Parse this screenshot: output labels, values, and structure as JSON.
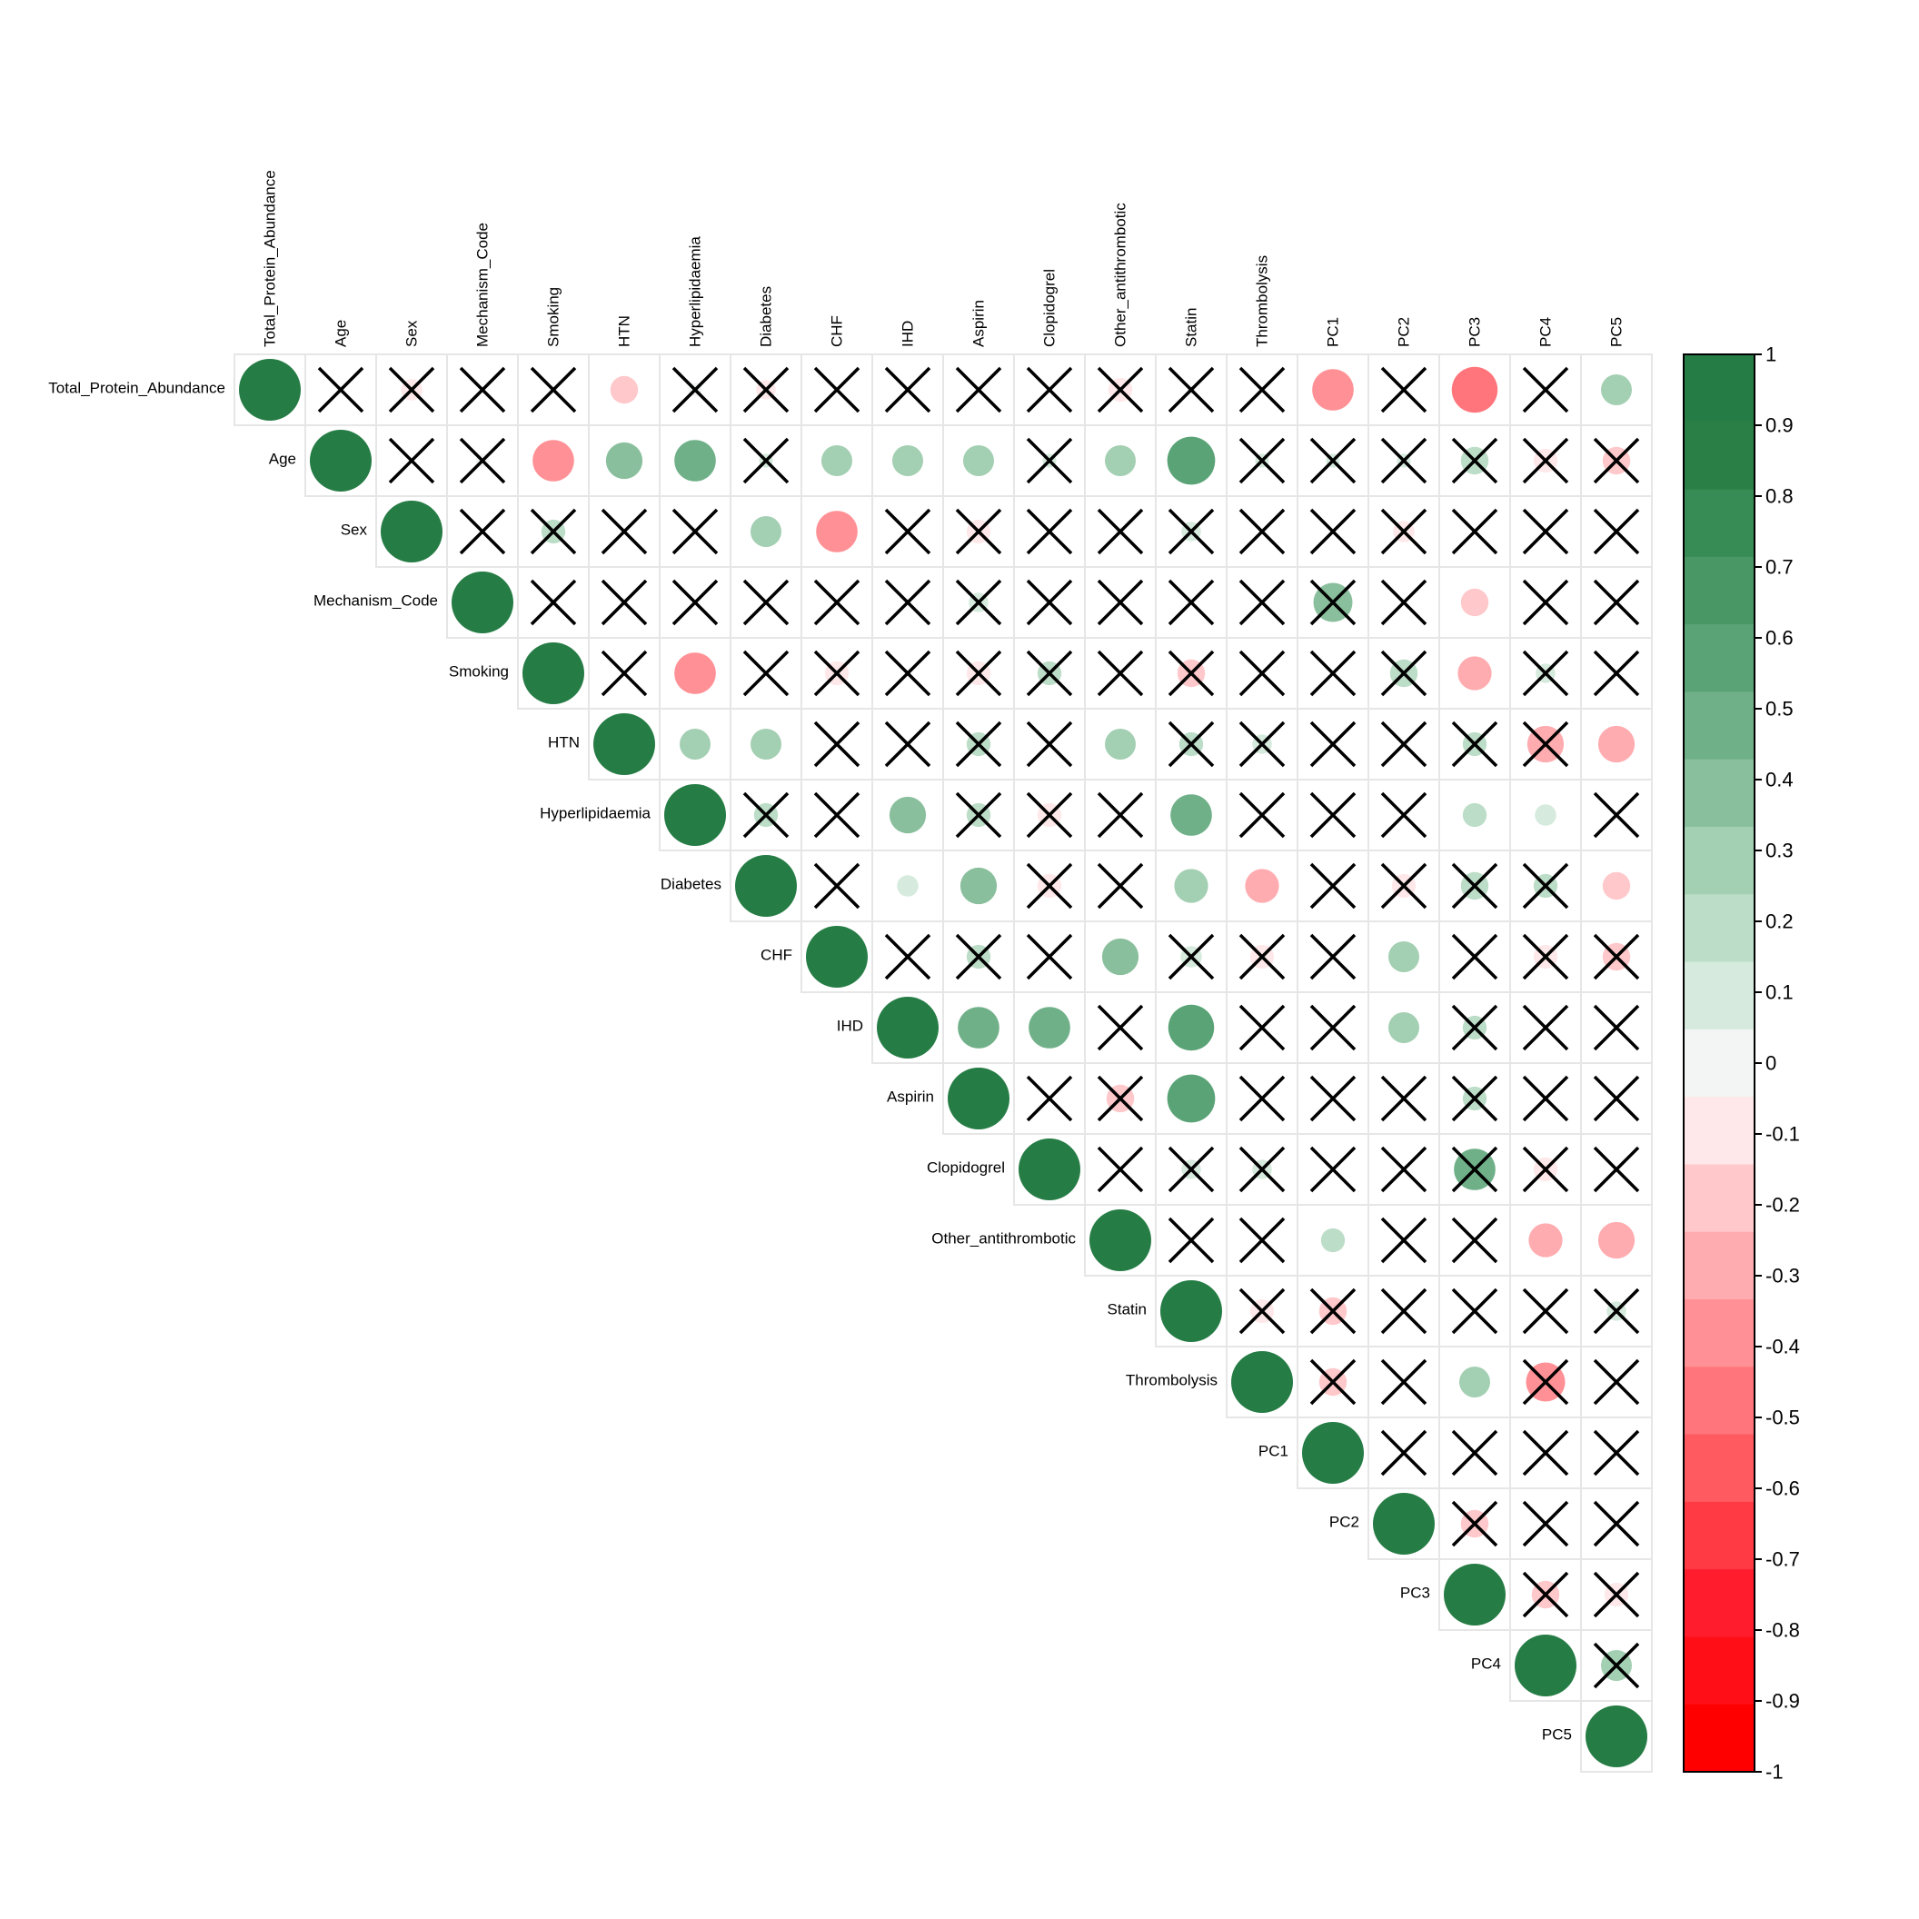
{
  "chart_data": {
    "type": "heatmap",
    "title": "",
    "variables": [
      "Total_Protein_Abundance",
      "Age",
      "Sex",
      "Mechanism_Code",
      "Smoking",
      "HTN",
      "Hyperlipidaemia",
      "Diabetes",
      "CHF",
      "IHD",
      "Aspirin",
      "Clopidogrel",
      "Other_antithrombotic",
      "Statin",
      "Thrombolysis",
      "PC1",
      "PC2",
      "PC3",
      "PC4",
      "PC5"
    ],
    "matrix_shape": "upper",
    "marker": "circle",
    "insignificant_marker": "cross",
    "correlations": [
      [
        1.0,
        0.02,
        -0.12,
        0.0,
        0.02,
        -0.2,
        -0.05,
        -0.1,
        0.0,
        0.0,
        0.02,
        0.0,
        -0.15,
        0.02,
        0.0,
        -0.45,
        0.0,
        -0.55,
        0.0,
        0.25
      ],
      [
        null,
        1.0,
        0.0,
        -0.05,
        -0.45,
        0.35,
        0.45,
        0.05,
        0.25,
        0.25,
        0.25,
        0.05,
        0.25,
        0.6,
        0.05,
        0.05,
        0.05,
        0.2,
        -0.15,
        -0.2
      ],
      [
        null,
        null,
        1.0,
        0.0,
        0.15,
        0.0,
        0.02,
        0.25,
        -0.45,
        0.0,
        -0.15,
        0.0,
        0.02,
        0.1,
        0.0,
        0.0,
        -0.12,
        0.0,
        0.0,
        0.0
      ],
      [
        null,
        null,
        null,
        1.0,
        0.02,
        0.02,
        0.0,
        0.0,
        0.0,
        0.0,
        0.1,
        0.0,
        0.0,
        0.0,
        0.0,
        0.4,
        0.0,
        -0.2,
        0.0,
        0.0
      ],
      [
        null,
        null,
        null,
        null,
        1.0,
        0.0,
        -0.45,
        0.0,
        -0.15,
        0.0,
        -0.15,
        0.15,
        0.0,
        -0.2,
        0.0,
        0.0,
        0.2,
        -0.3,
        0.1,
        0.0
      ],
      [
        null,
        null,
        null,
        null,
        null,
        1.0,
        0.25,
        0.25,
        0.0,
        0.0,
        0.15,
        0.0,
        0.25,
        0.15,
        0.1,
        0.0,
        0.02,
        0.15,
        -0.35,
        -0.35
      ],
      [
        null,
        null,
        null,
        null,
        null,
        null,
        1.0,
        0.15,
        0.0,
        0.35,
        0.15,
        -0.15,
        0.0,
        0.45,
        0.0,
        0.0,
        0.0,
        0.15,
        0.12,
        0.0
      ],
      [
        null,
        null,
        null,
        null,
        null,
        null,
        null,
        1.0,
        0.0,
        0.12,
        0.35,
        -0.15,
        0.0,
        0.3,
        -0.3,
        0.0,
        -0.15,
        0.2,
        0.15,
        -0.2
      ],
      [
        null,
        null,
        null,
        null,
        null,
        null,
        null,
        null,
        1.0,
        0.0,
        0.15,
        0.0,
        0.35,
        0.12,
        -0.15,
        0.0,
        0.25,
        0.02,
        -0.15,
        -0.2
      ],
      [
        null,
        null,
        null,
        null,
        null,
        null,
        null,
        null,
        null,
        1.0,
        0.45,
        0.45,
        0.0,
        0.55,
        0.0,
        0.0,
        0.25,
        0.15,
        0.0,
        0.0
      ],
      [
        null,
        null,
        null,
        null,
        null,
        null,
        null,
        null,
        null,
        null,
        1.0,
        0.0,
        -0.2,
        0.6,
        0.0,
        0.0,
        0.0,
        0.15,
        0.0,
        0.0
      ],
      [
        null,
        null,
        null,
        null,
        null,
        null,
        null,
        null,
        null,
        null,
        null,
        1.0,
        0.0,
        0.1,
        0.1,
        0.0,
        0.0,
        0.45,
        -0.15,
        0.0
      ],
      [
        null,
        null,
        null,
        null,
        null,
        null,
        null,
        null,
        null,
        null,
        null,
        null,
        1.0,
        0.0,
        0.0,
        0.15,
        0.0,
        0.0,
        -0.3,
        -0.35
      ],
      [
        null,
        null,
        null,
        null,
        null,
        null,
        null,
        null,
        null,
        null,
        null,
        null,
        null,
        1.0,
        -0.15,
        -0.2,
        0.0,
        0.0,
        0.0,
        0.1
      ],
      [
        null,
        null,
        null,
        null,
        null,
        null,
        null,
        null,
        null,
        null,
        null,
        null,
        null,
        null,
        1.0,
        -0.2,
        0.0,
        0.25,
        -0.4,
        0.0
      ],
      [
        null,
        null,
        null,
        null,
        null,
        null,
        null,
        null,
        null,
        null,
        null,
        null,
        null,
        null,
        null,
        1.0,
        0.0,
        0.0,
        0.0,
        0.0
      ],
      [
        null,
        null,
        null,
        null,
        null,
        null,
        null,
        null,
        null,
        null,
        null,
        null,
        null,
        null,
        null,
        null,
        1.0,
        -0.2,
        0.0,
        0.0
      ],
      [
        null,
        null,
        null,
        null,
        null,
        null,
        null,
        null,
        null,
        null,
        null,
        null,
        null,
        null,
        null,
        null,
        null,
        1.0,
        -0.2,
        -0.15
      ],
      [
        null,
        null,
        null,
        null,
        null,
        null,
        null,
        null,
        null,
        null,
        null,
        null,
        null,
        null,
        null,
        null,
        null,
        null,
        1.0,
        0.25
      ],
      [
        null,
        null,
        null,
        null,
        null,
        null,
        null,
        null,
        null,
        null,
        null,
        null,
        null,
        null,
        null,
        null,
        null,
        null,
        null,
        1.0
      ]
    ],
    "significant": [
      [
        true,
        false,
        false,
        false,
        false,
        true,
        false,
        false,
        false,
        false,
        false,
        false,
        false,
        false,
        false,
        true,
        false,
        true,
        false,
        true
      ],
      [
        null,
        true,
        false,
        false,
        true,
        true,
        true,
        false,
        true,
        true,
        true,
        false,
        true,
        true,
        false,
        false,
        false,
        false,
        false,
        false
      ],
      [
        null,
        null,
        true,
        false,
        false,
        false,
        false,
        true,
        true,
        false,
        false,
        false,
        false,
        false,
        false,
        false,
        false,
        false,
        false,
        false
      ],
      [
        null,
        null,
        null,
        true,
        false,
        false,
        false,
        false,
        false,
        false,
        false,
        false,
        false,
        false,
        false,
        false,
        false,
        true,
        false,
        false
      ],
      [
        null,
        null,
        null,
        null,
        true,
        false,
        true,
        false,
        false,
        false,
        false,
        false,
        false,
        false,
        false,
        false,
        false,
        true,
        false,
        false
      ],
      [
        null,
        null,
        null,
        null,
        null,
        true,
        true,
        true,
        false,
        false,
        false,
        false,
        true,
        false,
        false,
        false,
        false,
        false,
        false,
        true
      ],
      [
        null,
        null,
        null,
        null,
        null,
        null,
        true,
        false,
        false,
        true,
        false,
        false,
        false,
        true,
        false,
        false,
        false,
        true,
        true,
        false
      ],
      [
        null,
        null,
        null,
        null,
        null,
        null,
        null,
        true,
        false,
        true,
        true,
        false,
        false,
        true,
        true,
        false,
        false,
        false,
        false,
        true
      ],
      [
        null,
        null,
        null,
        null,
        null,
        null,
        null,
        null,
        true,
        false,
        false,
        false,
        true,
        false,
        false,
        false,
        true,
        false,
        false,
        false
      ],
      [
        null,
        null,
        null,
        null,
        null,
        null,
        null,
        null,
        null,
        true,
        true,
        true,
        false,
        true,
        false,
        false,
        true,
        false,
        false,
        false
      ],
      [
        null,
        null,
        null,
        null,
        null,
        null,
        null,
        null,
        null,
        null,
        true,
        false,
        false,
        true,
        false,
        false,
        false,
        false,
        false,
        false
      ],
      [
        null,
        null,
        null,
        null,
        null,
        null,
        null,
        null,
        null,
        null,
        null,
        true,
        false,
        false,
        false,
        false,
        false,
        false,
        false,
        false
      ],
      [
        null,
        null,
        null,
        null,
        null,
        null,
        null,
        null,
        null,
        null,
        null,
        null,
        true,
        false,
        false,
        true,
        false,
        false,
        true,
        true
      ],
      [
        null,
        null,
        null,
        null,
        null,
        null,
        null,
        null,
        null,
        null,
        null,
        null,
        null,
        true,
        false,
        false,
        false,
        false,
        false,
        false
      ],
      [
        null,
        null,
        null,
        null,
        null,
        null,
        null,
        null,
        null,
        null,
        null,
        null,
        null,
        null,
        true,
        false,
        false,
        true,
        false,
        false
      ],
      [
        null,
        null,
        null,
        null,
        null,
        null,
        null,
        null,
        null,
        null,
        null,
        null,
        null,
        null,
        null,
        true,
        false,
        false,
        false,
        false
      ],
      [
        null,
        null,
        null,
        null,
        null,
        null,
        null,
        null,
        null,
        null,
        null,
        null,
        null,
        null,
        null,
        null,
        true,
        false,
        false,
        false
      ],
      [
        null,
        null,
        null,
        null,
        null,
        null,
        null,
        null,
        null,
        null,
        null,
        null,
        null,
        null,
        null,
        null,
        null,
        true,
        false,
        false
      ],
      [
        null,
        null,
        null,
        null,
        null,
        null,
        null,
        null,
        null,
        null,
        null,
        null,
        null,
        null,
        null,
        null,
        null,
        null,
        true,
        false
      ],
      [
        null,
        null,
        null,
        null,
        null,
        null,
        null,
        null,
        null,
        null,
        null,
        null,
        null,
        null,
        null,
        null,
        null,
        null,
        null,
        true
      ]
    ],
    "colorbar": {
      "ticks": [
        "1",
        "0.9",
        "0.8",
        "0.7",
        "0.6",
        "0.5",
        "0.4",
        "0.3",
        "0.2",
        "0.1",
        "0",
        "-0.1",
        "-0.2",
        "-0.3",
        "-0.4",
        "-0.5",
        "-0.6",
        "-0.7",
        "-0.8",
        "-0.9",
        "-1"
      ],
      "range": [
        -1,
        1
      ],
      "colors_low_to_high": [
        "#FF0000",
        "#FF0E17",
        "#FF1C2D",
        "#FF3A44",
        "#FF5A60",
        "#FF757B",
        "#FF9196",
        "#FFACB0",
        "#FFC8CB",
        "#FFE8E9",
        "#F2F5F3",
        "#D6EBDD",
        "#BCDDC7",
        "#A3CFB2",
        "#8ABF9D",
        "#70B089",
        "#5AA376",
        "#489764",
        "#378B54",
        "#2A7F47",
        "#267C45"
      ]
    },
    "grid": true,
    "legend_placement": "right"
  }
}
